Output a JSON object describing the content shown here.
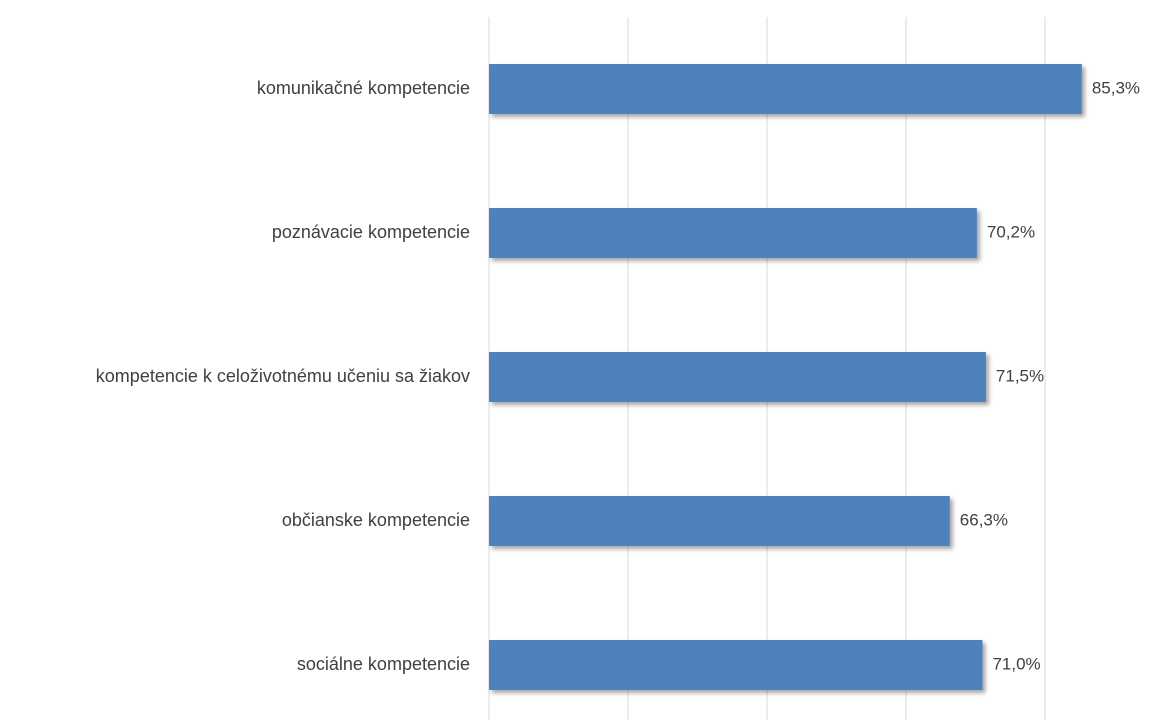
{
  "chart_data": {
    "type": "barh",
    "categories": [
      "komunikačné kompetencie",
      "poznávacie kompetencie",
      "kompetencie k celoživotnému učeniu sa žiakov",
      "občianske kompetencie",
      "sociálne kompetencie"
    ],
    "values": [
      85.3,
      70.2,
      71.5,
      66.3,
      71.0
    ],
    "value_labels": [
      "85,3%",
      "70,2%",
      "71,5%",
      "66,3%",
      "71,0%"
    ],
    "color": "#4f81bd",
    "xlim": [
      0,
      90
    ],
    "xticks": [
      0,
      20,
      40,
      60,
      80
    ],
    "grid": true
  }
}
